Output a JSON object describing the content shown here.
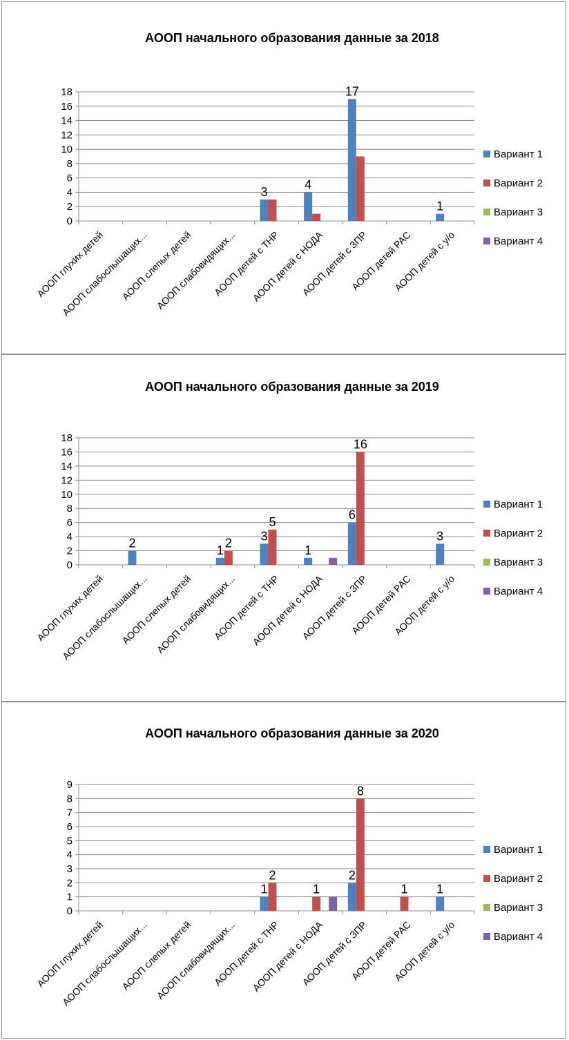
{
  "chart_data": [
    {
      "type": "bar",
      "title": "АООП начального образования  данные за 2018",
      "categories": [
        "АООП глухих детей",
        "АООП слабослышащих...",
        "АООП слепых детей",
        "АООП слабовидящих...",
        "АООП детей с ТНР",
        "АООП детей с НОДА",
        "АООП детей с ЗПР",
        "АООП детей РАС",
        "АООП детей с у/о"
      ],
      "series": [
        {
          "name": "Вариант 1",
          "color": "#4f81bd",
          "values": [
            0,
            0,
            0,
            0,
            3,
            4,
            17,
            0,
            1
          ]
        },
        {
          "name": "Вариант 2",
          "color": "#c0504d",
          "values": [
            0,
            0,
            0,
            0,
            3,
            1,
            9,
            0,
            0
          ]
        },
        {
          "name": "Вариант 3",
          "color": "#9bbb59",
          "values": [
            0,
            0,
            0,
            0,
            0,
            0,
            0,
            0,
            0
          ]
        },
        {
          "name": "Вариант 4",
          "color": "#8064a2",
          "values": [
            0,
            0,
            0,
            0,
            0,
            0,
            0,
            0,
            0
          ]
        }
      ],
      "data_labels": [
        {
          "category": 4,
          "series": 0,
          "text": "3"
        },
        {
          "category": 5,
          "series": 0,
          "text": "4"
        },
        {
          "category": 6,
          "series": 0,
          "text": "17"
        },
        {
          "category": 8,
          "series": 0,
          "text": "1"
        }
      ],
      "ylim": [
        0,
        18
      ],
      "yticks": [
        "0",
        "2",
        "4",
        "6",
        "8",
        "10",
        "12",
        "14",
        "16",
        "18"
      ],
      "grid": true,
      "legend": "right"
    },
    {
      "type": "bar",
      "title": "АООП начального образования  данные за 2019",
      "categories": [
        "АООП глухих детей",
        "АООП слабослышащих...",
        "АООП слепых детей",
        "АООП слабовидящих...",
        "АООП детей с ТНР",
        "АООП детей с НОДА",
        "АООП детей с ЗПР",
        "АООП детей РАС",
        "АООП детей с у/о"
      ],
      "series": [
        {
          "name": "Вариант 1",
          "color": "#4f81bd",
          "values": [
            0,
            2,
            0,
            1,
            3,
            1,
            6,
            0,
            3
          ]
        },
        {
          "name": "Вариант 2",
          "color": "#c0504d",
          "values": [
            0,
            0,
            0,
            2,
            5,
            0,
            16,
            0,
            0
          ]
        },
        {
          "name": "Вариант 3",
          "color": "#9bbb59",
          "values": [
            0,
            0,
            0,
            0,
            0,
            0,
            0,
            0,
            0
          ]
        },
        {
          "name": "Вариант 4",
          "color": "#8064a2",
          "values": [
            0,
            0,
            0,
            0,
            0,
            1,
            0,
            0,
            0
          ]
        }
      ],
      "data_labels": [
        {
          "category": 1,
          "series": 0,
          "text": "2"
        },
        {
          "category": 3,
          "series": 0,
          "text": "1"
        },
        {
          "category": 3,
          "series": 1,
          "text": "2"
        },
        {
          "category": 4,
          "series": 0,
          "text": "3"
        },
        {
          "category": 4,
          "series": 1,
          "text": "5"
        },
        {
          "category": 5,
          "series": 0,
          "text": "1"
        },
        {
          "category": 6,
          "series": 0,
          "text": "6"
        },
        {
          "category": 6,
          "series": 1,
          "text": "16"
        },
        {
          "category": 8,
          "series": 0,
          "text": "3"
        }
      ],
      "ylim": [
        0,
        18
      ],
      "yticks": [
        "0",
        "2",
        "4",
        "6",
        "8",
        "10",
        "12",
        "14",
        "16",
        "18"
      ],
      "grid": true,
      "legend": "right"
    },
    {
      "type": "bar",
      "title": "АООП начального образования  данные за 2020",
      "categories": [
        "АООП глухих детей",
        "АООП слабослышащих...",
        "АООП слепых детей",
        "АООП слабовидящих...",
        "АООП детей с ТНР",
        "АООП детей с НОДА",
        "АООП детей с ЗПР",
        "АООП детей РАС",
        "АООП детей с у/о"
      ],
      "series": [
        {
          "name": "Вариант 1",
          "color": "#4f81bd",
          "values": [
            0,
            0,
            0,
            0,
            1,
            0,
            2,
            0,
            1
          ]
        },
        {
          "name": "Вариант 2",
          "color": "#c0504d",
          "values": [
            0,
            0,
            0,
            0,
            2,
            1,
            8,
            1,
            0
          ]
        },
        {
          "name": "Вариант 3",
          "color": "#9bbb59",
          "values": [
            0,
            0,
            0,
            0,
            0,
            0,
            0,
            0,
            0
          ]
        },
        {
          "name": "Вариант 4",
          "color": "#8064a2",
          "values": [
            0,
            0,
            0,
            0,
            0,
            1,
            0,
            0,
            0
          ]
        }
      ],
      "data_labels": [
        {
          "category": 4,
          "series": 0,
          "text": "1"
        },
        {
          "category": 4,
          "series": 1,
          "text": "2"
        },
        {
          "category": 5,
          "series": 1,
          "text": "1"
        },
        {
          "category": 6,
          "series": 0,
          "text": "2"
        },
        {
          "category": 6,
          "series": 1,
          "text": "8"
        },
        {
          "category": 7,
          "series": 1,
          "text": "1"
        },
        {
          "category": 8,
          "series": 0,
          "text": "1"
        }
      ],
      "ylim": [
        0,
        9
      ],
      "yticks": [
        "0",
        "1",
        "2",
        "3",
        "4",
        "5",
        "6",
        "7",
        "8",
        "9"
      ],
      "grid": true,
      "legend": "right"
    }
  ]
}
